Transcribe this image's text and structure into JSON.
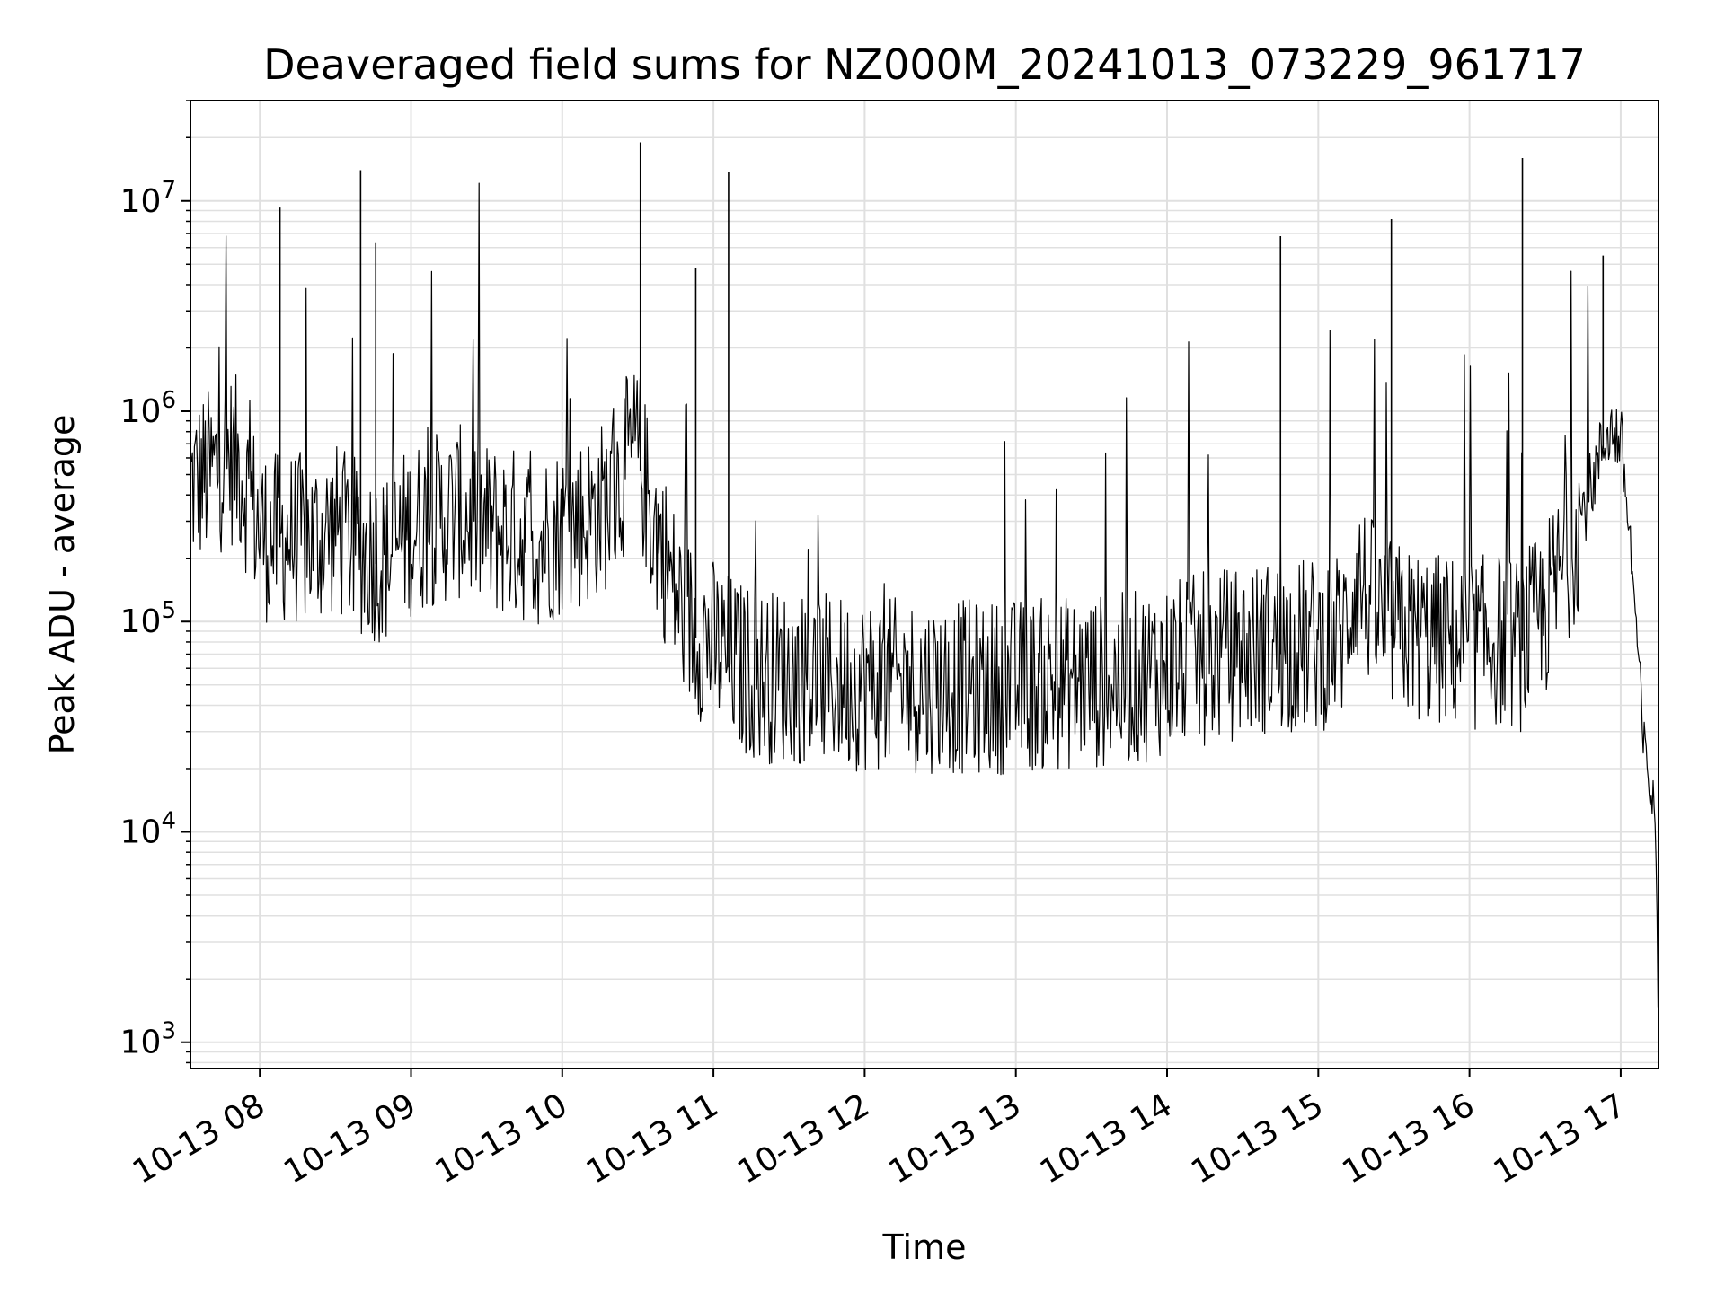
{
  "chart_data": {
    "type": "line",
    "title": "Deaveraged field sums for NZ000M_20241013_073229_961717",
    "xlabel": "Time",
    "ylabel": "Peak ADU - average",
    "y_scale": "log",
    "ylim": [
      750,
      30000000
    ],
    "xlim": [
      "2024-10-13 07:32:29",
      "2024-10-13 17:15:00"
    ],
    "grid": true,
    "line_color": "#000000",
    "grid_color": "#e0e0e0",
    "x_ticks": [
      {
        "value": "2024-10-13 08:00",
        "label": "10-13 08"
      },
      {
        "value": "2024-10-13 09:00",
        "label": "10-13 09"
      },
      {
        "value": "2024-10-13 10:00",
        "label": "10-13 10"
      },
      {
        "value": "2024-10-13 11:00",
        "label": "10-13 11"
      },
      {
        "value": "2024-10-13 12:00",
        "label": "10-13 12"
      },
      {
        "value": "2024-10-13 13:00",
        "label": "10-13 13"
      },
      {
        "value": "2024-10-13 14:00",
        "label": "10-13 14"
      },
      {
        "value": "2024-10-13 15:00",
        "label": "10-13 15"
      },
      {
        "value": "2024-10-13 16:00",
        "label": "10-13 16"
      },
      {
        "value": "2024-10-13 17:00",
        "label": "10-13 17"
      }
    ],
    "y_ticks": [
      {
        "value": 1000,
        "base": "10",
        "exp": "3"
      },
      {
        "value": 10000,
        "base": "10",
        "exp": "4"
      },
      {
        "value": 100000,
        "base": "10",
        "exp": "5"
      },
      {
        "value": 1000000,
        "base": "10",
        "exp": "6"
      },
      {
        "value": 10000000,
        "base": "10",
        "exp": "7"
      }
    ],
    "series": [
      {
        "x": [
          "2024-10-13 07:32",
          "2024-10-13 07:40",
          "2024-10-13 07:48",
          "2024-10-13 07:52",
          "2024-10-13 07:56",
          "2024-10-13 08:00",
          "2024-10-13 08:05",
          "2024-10-13 08:10",
          "2024-10-13 08:20",
          "2024-10-13 08:30",
          "2024-10-13 08:40",
          "2024-10-13 08:50",
          "2024-10-13 09:00",
          "2024-10-13 09:10",
          "2024-10-13 09:20",
          "2024-10-13 09:30",
          "2024-10-13 09:40",
          "2024-10-13 09:50",
          "2024-10-13 10:00",
          "2024-10-13 10:10",
          "2024-10-13 10:20",
          "2024-10-13 10:25",
          "2024-10-13 10:30",
          "2024-10-13 10:35",
          "2024-10-13 10:40",
          "2024-10-13 10:45",
          "2024-10-13 10:50",
          "2024-10-13 11:00",
          "2024-10-13 11:10",
          "2024-10-13 11:20",
          "2024-10-13 11:30",
          "2024-10-13 11:40",
          "2024-10-13 11:50",
          "2024-10-13 12:00",
          "2024-10-13 12:15",
          "2024-10-13 12:30",
          "2024-10-13 12:45",
          "2024-10-13 13:00",
          "2024-10-13 13:15",
          "2024-10-13 13:30",
          "2024-10-13 13:45",
          "2024-10-13 14:00",
          "2024-10-13 14:15",
          "2024-10-13 14:30",
          "2024-10-13 14:45",
          "2024-10-13 15:00",
          "2024-10-13 15:10",
          "2024-10-13 15:15",
          "2024-10-13 15:25",
          "2024-10-13 15:35",
          "2024-10-13 15:45",
          "2024-10-13 16:00",
          "2024-10-13 16:10",
          "2024-10-13 16:20",
          "2024-10-13 16:30",
          "2024-10-13 16:40",
          "2024-10-13 16:50",
          "2024-10-13 16:55",
          "2024-10-13 17:00",
          "2024-10-13 17:03",
          "2024-10-13 17:06",
          "2024-10-13 17:09",
          "2024-10-13 17:12",
          "2024-10-13 17:14",
          "2024-10-13 17:15"
        ],
        "y": [
          400000,
          450000,
          550000,
          500000,
          350000,
          250000,
          220000,
          230000,
          220000,
          250000,
          200000,
          180000,
          250000,
          280000,
          300000,
          250000,
          240000,
          220000,
          250000,
          280000,
          350000,
          500000,
          600000,
          300000,
          200000,
          120000,
          90000,
          70000,
          55000,
          50000,
          50000,
          48000,
          47000,
          46000,
          45000,
          45000,
          44000,
          45000,
          46000,
          47000,
          48000,
          55000,
          60000,
          65000,
          70000,
          70000,
          80000,
          150000,
          90000,
          80000,
          75000,
          70000,
          75000,
          70000,
          100000,
          200000,
          500000,
          800000,
          700000,
          300000,
          100000,
          25000,
          15000,
          10000,
          1000
        ]
      }
    ],
    "spikes": [
      {
        "x": "2024-10-13 08:08",
        "y": 9300000
      },
      {
        "x": "2024-10-13 08:40",
        "y": 14000000
      },
      {
        "x": "2024-10-13 08:46",
        "y": 6300000
      },
      {
        "x": "2024-10-13 10:31",
        "y": 19000000
      },
      {
        "x": "2024-10-13 10:53",
        "y": 4800000
      },
      {
        "x": "2024-10-13 11:06",
        "y": 13800000
      },
      {
        "x": "2024-10-13 14:45",
        "y": 6800000
      },
      {
        "x": "2024-10-13 15:29",
        "y": 8200000
      },
      {
        "x": "2024-10-13 16:21",
        "y": 16000000
      },
      {
        "x": "2024-10-13 16:53",
        "y": 5500000
      }
    ]
  }
}
